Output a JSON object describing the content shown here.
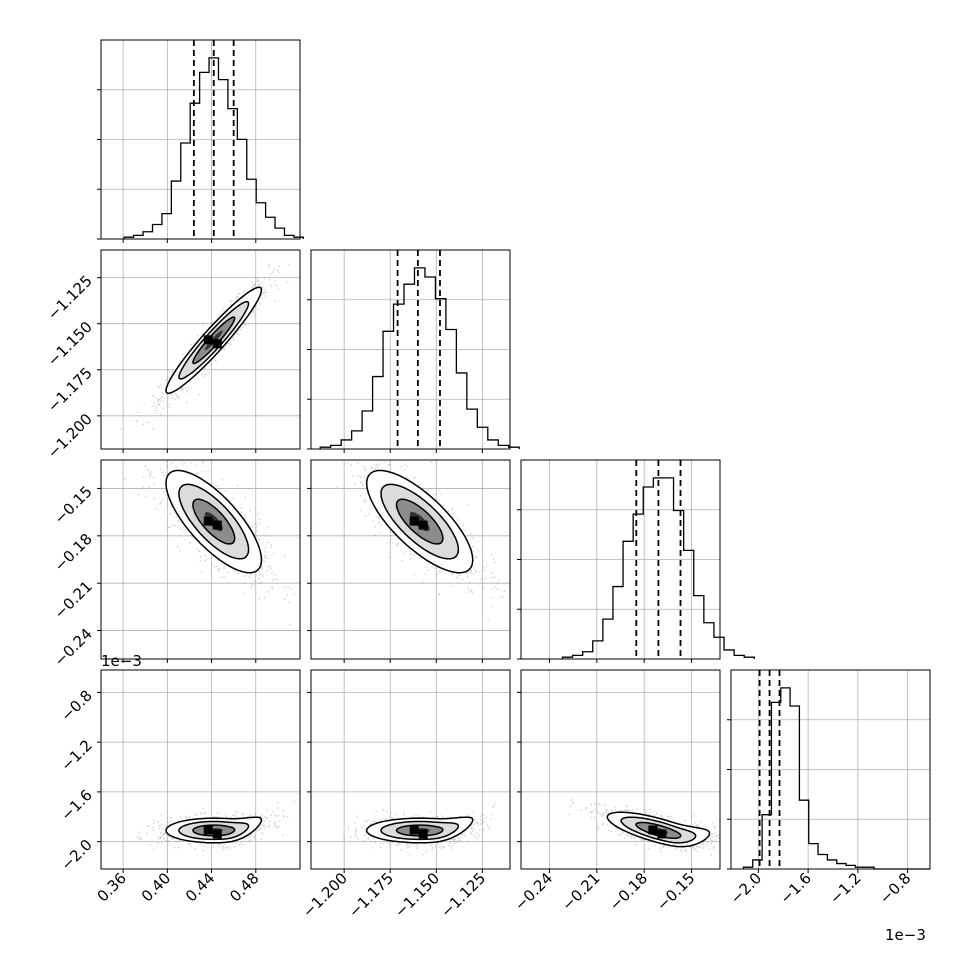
{
  "chart_data": {
    "type": "corner",
    "parameters": [
      {
        "id": "p0",
        "range": [
          0.34,
          0.52
        ],
        "ticks": [
          0.36,
          0.4,
          0.44,
          0.48
        ],
        "tick_labels": [
          "0.36",
          "0.40",
          "0.44",
          "0.48"
        ],
        "quantiles": [
          0.424,
          0.442,
          0.46
        ],
        "mean": 0.442,
        "sd": 0.018
      },
      {
        "id": "p1",
        "range": [
          -1.218,
          -1.11
        ],
        "ticks": [
          -1.2,
          -1.175,
          -1.15,
          -1.125
        ],
        "tick_labels": [
          "−1.200",
          "−1.175",
          "−1.150",
          "−1.125"
        ],
        "quantiles": [
          -1.171,
          -1.16,
          -1.148
        ],
        "mean": -1.159,
        "sd": 0.012
      },
      {
        "id": "p2",
        "range": [
          -0.258,
          -0.132
        ],
        "ticks": [
          -0.24,
          -0.21,
          -0.18,
          -0.15
        ],
        "tick_labels": [
          "−0.24",
          "−0.21",
          "−0.18",
          "−0.15"
        ],
        "quantiles": [
          -0.185,
          -0.171,
          -0.157
        ],
        "mean": -0.171,
        "sd": 0.0135
      },
      {
        "id": "p3",
        "range": [
          -2.22,
          -0.62
        ],
        "ticks": [
          -2.0,
          -1.6,
          -1.2,
          -0.8
        ],
        "tick_labels": [
          "−2.0",
          "−1.6",
          "−1.2",
          "−0.8"
        ],
        "quantiles": [
          -1.99,
          -1.91,
          -1.83
        ],
        "mean": -1.91,
        "sd": 0.075,
        "scale_label": "1e−3"
      }
    ],
    "marginals": [
      {
        "param": 0,
        "counts": [
          1,
          2,
          4,
          8,
          14,
          32,
          53,
          75,
          92,
          100,
          88,
          72,
          55,
          33,
          20,
          12,
          6,
          2,
          1
        ]
      },
      {
        "param": 1,
        "counts": [
          1,
          2,
          5,
          10,
          21,
          40,
          65,
          80,
          91,
          100,
          95,
          83,
          66,
          42,
          22,
          12,
          5,
          2,
          1
        ]
      },
      {
        "param": 2,
        "counts": [
          1,
          2,
          4,
          10,
          22,
          40,
          65,
          80,
          95,
          100,
          100,
          82,
          60,
          35,
          20,
          12,
          5,
          2,
          1
        ]
      },
      {
        "param": 3,
        "counts": [
          1,
          5,
          30,
          92,
          100,
          90,
          38,
          14,
          8,
          5,
          3,
          2,
          1,
          1,
          0,
          0,
          0,
          0,
          0,
          0
        ]
      }
    ],
    "pairs": [
      {
        "x": 0,
        "y": 1,
        "correlation": 0.95
      },
      {
        "x": 0,
        "y": 2,
        "correlation": -0.75
      },
      {
        "x": 1,
        "y": 2,
        "correlation": -0.75
      },
      {
        "x": 0,
        "y": 3,
        "correlation": 0.1
      },
      {
        "x": 1,
        "y": 3,
        "correlation": 0.1
      },
      {
        "x": 2,
        "y": 3,
        "correlation": -0.45
      }
    ],
    "grid": true
  }
}
